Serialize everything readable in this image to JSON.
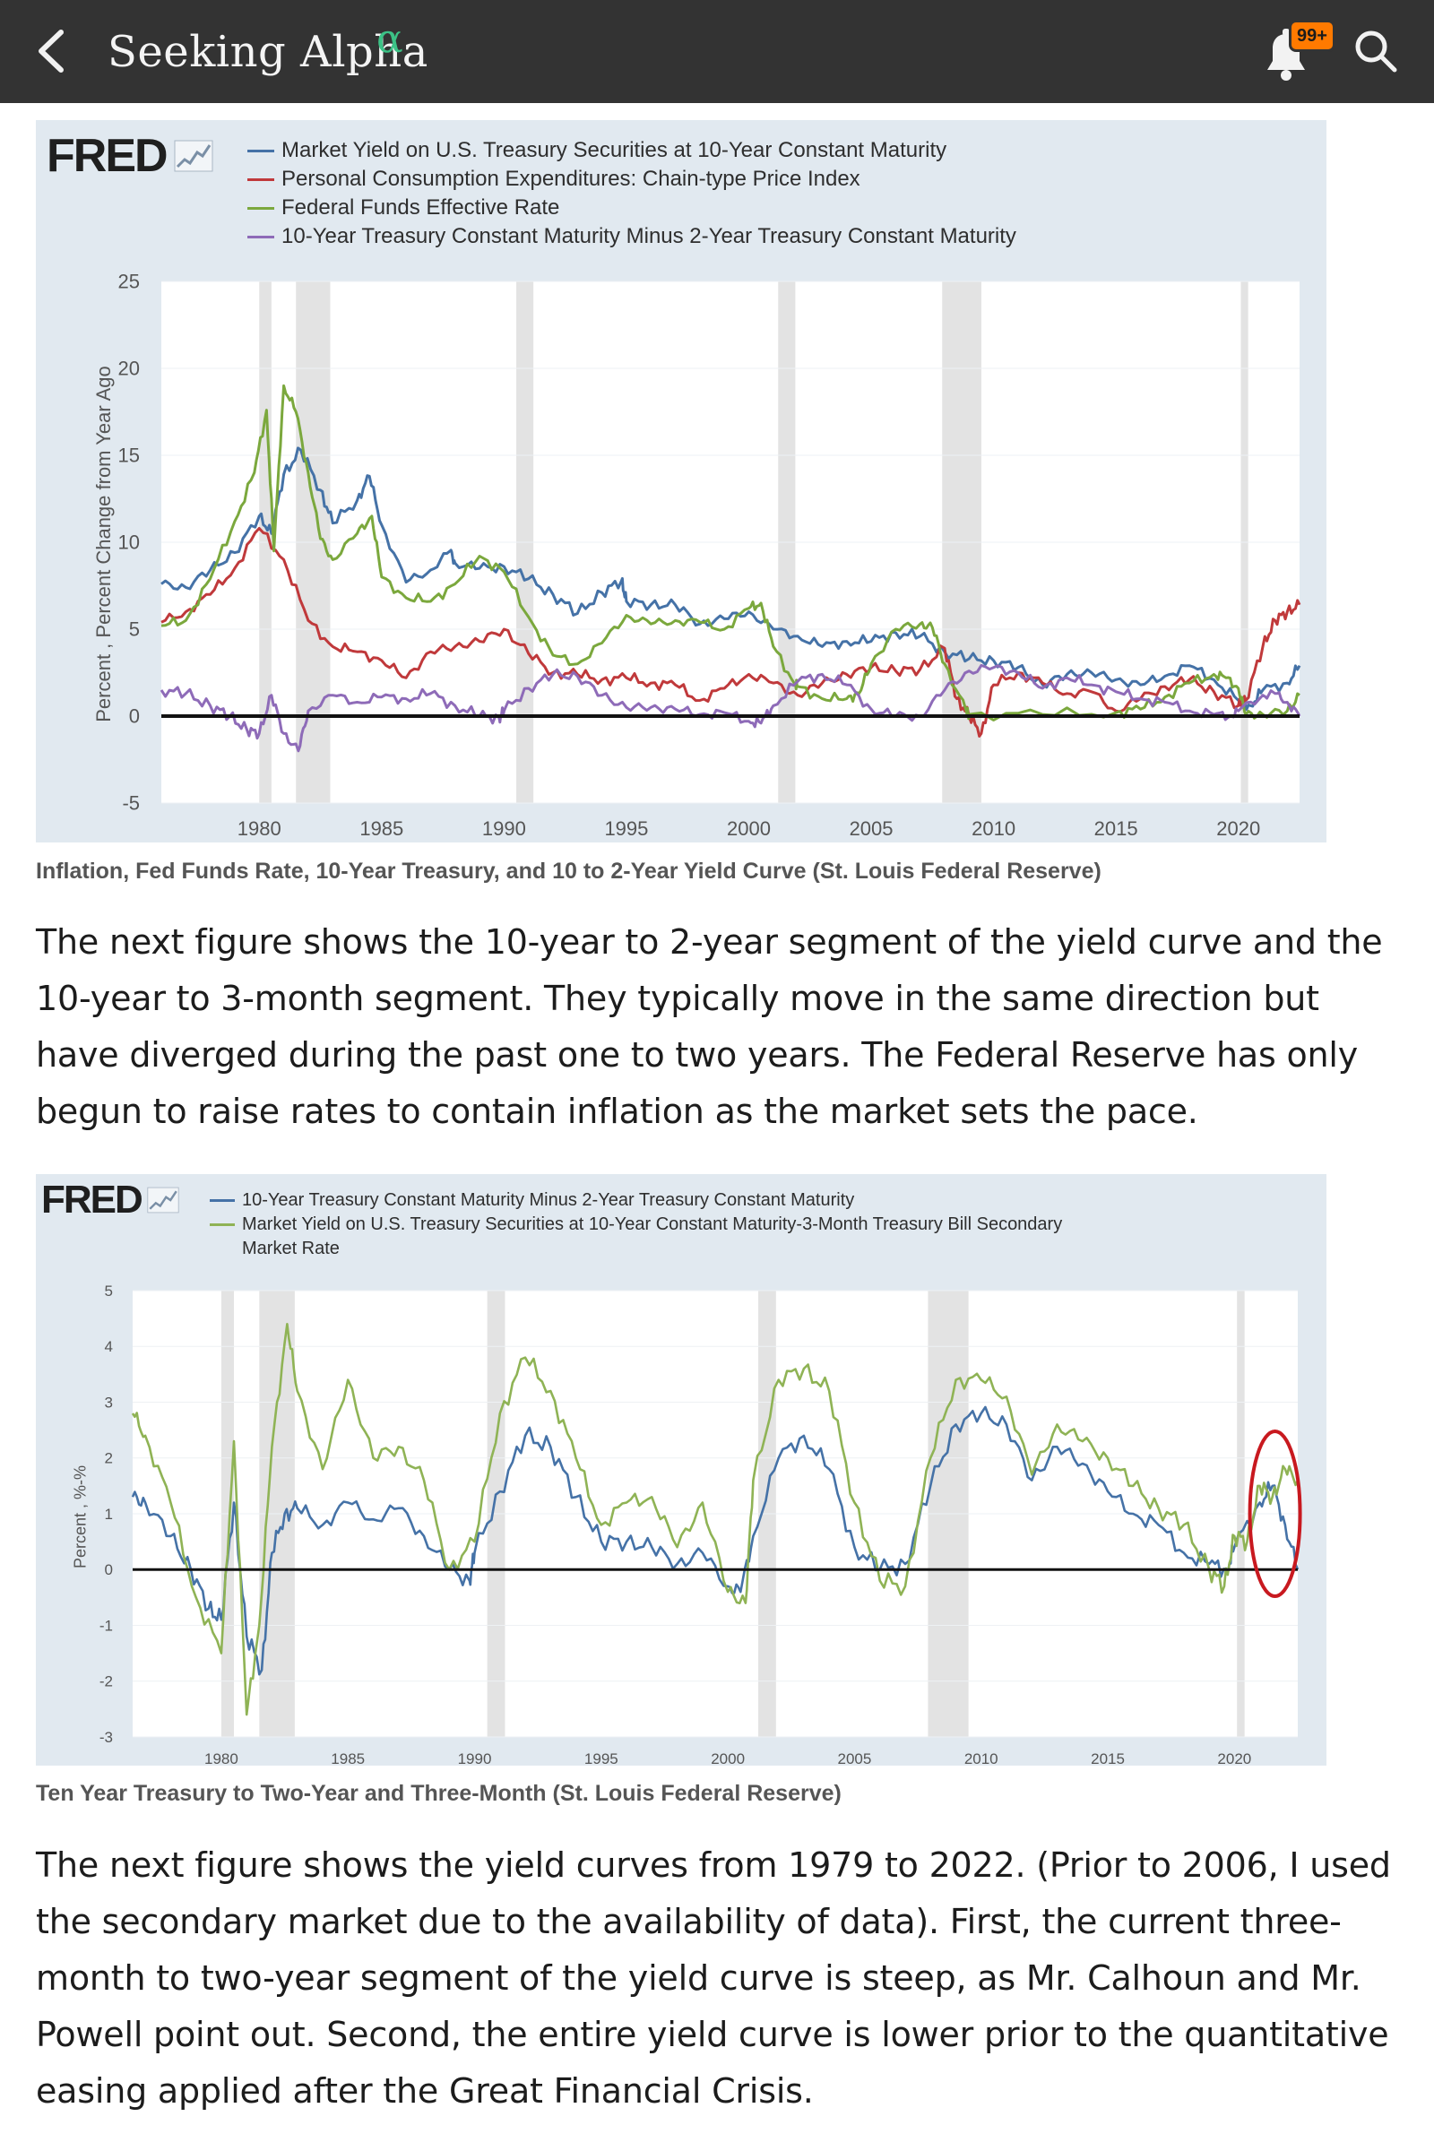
{
  "app": {
    "brand": "Seeking Alpha",
    "brand_mark": "α",
    "notifications_badge": "99+",
    "icons": [
      "back-chevron-icon",
      "bell-icon",
      "search-icon"
    ],
    "colors": {
      "appbar": "#333333",
      "alpha": "#3cc286",
      "badge": "#ff7a00"
    }
  },
  "figure1": {
    "logo": "FRED",
    "caption": "Inflation, Fed Funds Rate, 10-Year Treasury, and 10 to 2-Year Yield Curve (St. Louis Federal Reserve)",
    "chart_data": {
      "type": "line",
      "ylabel": "Percent , Percent Change from Year Ago",
      "ylim": [
        -5,
        25
      ],
      "yticks": [
        "25",
        "20",
        "15",
        "10",
        "5",
        "0",
        "-5"
      ],
      "xlim": [
        1976,
        2022.5
      ],
      "xticks": [
        "1980",
        "1985",
        "1990",
        "1995",
        "2000",
        "2005",
        "2010",
        "2015",
        "2020"
      ],
      "recessions": [
        [
          1980.0,
          1980.5
        ],
        [
          1981.5,
          1982.9
        ],
        [
          1990.5,
          1991.2
        ],
        [
          2001.2,
          2001.9
        ],
        [
          2007.9,
          2009.5
        ],
        [
          2020.1,
          2020.4
        ]
      ],
      "zero_line": 0,
      "legend_position": "top",
      "series": [
        {
          "name": "Market Yield on U.S. Treasury Securities at 10-Year Constant Maturity",
          "color": "#4572a7",
          "x": [
            1976,
            1977,
            1978,
            1979,
            1980,
            1980.5,
            1981,
            1981.7,
            1982.5,
            1983,
            1984,
            1984.5,
            1985,
            1986,
            1987,
            1987.8,
            1988,
            1989,
            1990,
            1991,
            1992,
            1993,
            1994,
            1994.8,
            1995,
            1996,
            1997,
            1998,
            1999,
            2000,
            2001,
            2002,
            2003,
            2004,
            2005,
            2006,
            2007,
            2008,
            2009,
            2010,
            2011,
            2012,
            2013,
            2014,
            2015,
            2016,
            2017,
            2018,
            2019,
            2020,
            2020.5,
            2021,
            2022,
            2022.5
          ],
          "y": [
            7.6,
            7.4,
            8.4,
            9.4,
            11.5,
            10.5,
            13.9,
            15.3,
            13.0,
            11.1,
            12.4,
            13.8,
            11.0,
            7.7,
            8.4,
            9.5,
            8.8,
            8.5,
            8.6,
            7.9,
            7.0,
            5.9,
            7.1,
            7.8,
            6.6,
            6.4,
            6.4,
            5.3,
            5.6,
            6.0,
            5.0,
            4.6,
            4.0,
            4.3,
            4.3,
            4.8,
            4.6,
            3.7,
            3.3,
            3.2,
            2.8,
            1.8,
            2.4,
            2.5,
            2.1,
            1.8,
            2.3,
            2.9,
            2.1,
            0.9,
            0.6,
            1.5,
            1.9,
            2.9
          ]
        },
        {
          "name": "Personal Consumption Expenditures: Chain-type Price Index",
          "color": "#c0393b",
          "x": [
            1976,
            1977,
            1978,
            1979,
            1980,
            1981,
            1982,
            1983,
            1984,
            1985,
            1986,
            1987,
            1988,
            1989,
            1990,
            1991,
            1992,
            1993,
            1994,
            1995,
            1996,
            1997,
            1998,
            1999,
            2000,
            2001,
            2002,
            2003,
            2004,
            2005,
            2006,
            2007,
            2008,
            2008.5,
            2009,
            2009.5,
            2010,
            2011,
            2012,
            2013,
            2014,
            2015,
            2016,
            2017,
            2018,
            2019,
            2020,
            2020.3,
            2021,
            2021.5,
            2022,
            2022.5
          ],
          "y": [
            5.4,
            6.0,
            7.0,
            8.5,
            10.8,
            9.0,
            5.5,
            4.0,
            3.7,
            3.2,
            2.2,
            3.7,
            4.0,
            4.3,
            5.0,
            3.6,
            2.5,
            2.4,
            2.1,
            2.2,
            1.9,
            1.8,
            0.9,
            1.6,
            2.4,
            1.9,
            1.2,
            1.9,
            2.4,
            2.8,
            2.6,
            2.7,
            3.9,
            1.0,
            0.0,
            -1.0,
            1.8,
            2.5,
            1.9,
            1.3,
            1.4,
            0.3,
            1.0,
            1.7,
            2.1,
            1.4,
            0.6,
            0.9,
            4.0,
            5.5,
            6.0,
            6.4
          ]
        },
        {
          "name": "Federal Funds Effective Rate",
          "color": "#7ba83d",
          "x": [
            1976,
            1977,
            1978,
            1979,
            1979.8,
            1980.3,
            1980.6,
            1981,
            1981.5,
            1982,
            1982.5,
            1983,
            1984,
            1984.6,
            1985,
            1986,
            1987,
            1988,
            1989,
            1990,
            1991,
            1992,
            1993,
            1994,
            1995,
            1996,
            1997,
            1998,
            1999,
            2000,
            2000.5,
            2001,
            2001.9,
            2002,
            2003,
            2004,
            2004.5,
            2005,
            2006,
            2007,
            2007.5,
            2008,
            2008.9,
            2009,
            2012,
            2015,
            2016,
            2017,
            2018,
            2019,
            2019.5,
            2020,
            2020.3,
            2021,
            2022,
            2022.5
          ],
          "y": [
            5.2,
            5.5,
            7.9,
            11.2,
            14.0,
            17.6,
            9.5,
            19.0,
            17.5,
            14.0,
            10.2,
            9.0,
            10.5,
            11.5,
            8.0,
            6.8,
            6.6,
            7.6,
            9.2,
            8.3,
            5.7,
            3.5,
            3.0,
            4.2,
            5.8,
            5.3,
            5.5,
            5.4,
            5.0,
            6.2,
            6.5,
            4.0,
            1.8,
            1.7,
            1.0,
            1.0,
            1.3,
            3.0,
            5.0,
            5.3,
            5.1,
            3.0,
            0.2,
            0.1,
            0.1,
            0.2,
            0.4,
            1.1,
            1.9,
            2.4,
            2.2,
            1.6,
            0.1,
            0.1,
            0.3,
            1.2
          ]
        },
        {
          "name": "10-Year Treasury Constant Maturity Minus 2-Year Treasury Constant Maturity",
          "color": "#8e6bb8",
          "x": [
            1976,
            1977,
            1978,
            1978.8,
            1979.5,
            1980,
            1980.5,
            1981,
            1981.6,
            1982,
            1983,
            1984,
            1985,
            1986,
            1987,
            1988,
            1989,
            1989.8,
            1990,
            1991,
            1992,
            1993,
            1994,
            1995,
            1996,
            1997,
            1998,
            1999,
            2000,
            2000.5,
            2001,
            2002,
            2003,
            2004,
            2005,
            2006,
            2007,
            2008,
            2009,
            2010,
            2011,
            2012,
            2013,
            2014,
            2015,
            2016,
            2017,
            2018,
            2019,
            2019.7,
            2020,
            2021,
            2021.5,
            2022,
            2022.5
          ],
          "y": [
            1.5,
            1.3,
            0.6,
            0.0,
            -0.8,
            -1.0,
            1.2,
            -1.0,
            -2.0,
            0.3,
            1.2,
            0.8,
            1.1,
            1.0,
            1.3,
            0.6,
            0.0,
            -0.1,
            0.3,
            1.6,
            2.4,
            2.3,
            1.2,
            0.5,
            0.5,
            0.4,
            0.1,
            0.2,
            -0.3,
            -0.4,
            0.6,
            2.0,
            2.4,
            1.8,
            0.4,
            0.0,
            0.0,
            1.5,
            2.6,
            2.8,
            2.5,
            1.6,
            2.2,
            1.8,
            1.4,
            1.0,
            0.8,
            0.3,
            0.1,
            0.0,
            0.3,
            1.2,
            1.3,
            0.8,
            0.0
          ]
        }
      ]
    }
  },
  "paragraph1": "The next figure shows the 10-year to 2-year segment of the yield curve and the 10-year to 3-month segment. They typically move in the same direction but have diverged during the past one to two years. The Federal Reserve has only begun to raise rates to contain inflation as the market sets the pace.",
  "figure2": {
    "logo": "FRED",
    "caption": "Ten Year Treasury to Two-Year and Three-Month (St. Louis Federal Reserve)",
    "chart_data": {
      "type": "line",
      "ylabel": "Percent , %-%",
      "ylim": [
        -3,
        5
      ],
      "yticks": [
        "5",
        "4",
        "3",
        "2",
        "1",
        "0",
        "-1",
        "-2",
        "-3"
      ],
      "xlim": [
        1976.5,
        2022.5
      ],
      "xticks": [
        "1980",
        "1985",
        "1990",
        "1995",
        "2000",
        "2005",
        "2010",
        "2015",
        "2020"
      ],
      "recessions": [
        [
          1980.0,
          1980.5
        ],
        [
          1981.5,
          1982.9
        ],
        [
          1990.5,
          1991.2
        ],
        [
          2001.2,
          2001.9
        ],
        [
          2007.9,
          2009.5
        ],
        [
          2020.1,
          2020.4
        ]
      ],
      "zero_line": 0,
      "annotation": "red-circle-highlight",
      "legend_position": "top",
      "series": [
        {
          "name": "10-Year Treasury Constant Maturity Minus 2-Year Treasury Constant Maturity",
          "color": "#4572a7",
          "x": [
            1976.5,
            1977,
            1978,
            1978.8,
            1979.5,
            1980,
            1980.5,
            1981,
            1981.6,
            1982,
            1982.5,
            1983,
            1984,
            1985,
            1986,
            1987,
            1988,
            1989,
            1989.8,
            1990,
            1991,
            1992,
            1993,
            1994,
            1995,
            1996,
            1997,
            1998,
            1999,
            2000,
            2000.5,
            2001,
            2002,
            2003,
            2004,
            2005,
            2006,
            2007,
            2008,
            2009,
            2010,
            2011,
            2012,
            2013,
            2014,
            2015,
            2016,
            2017,
            2018,
            2019,
            2019.7,
            2020,
            2021,
            2021.5,
            2022,
            2022.5
          ],
          "y": [
            1.3,
            1.2,
            0.6,
            0.0,
            -0.7,
            -0.9,
            1.2,
            -1.2,
            -1.8,
            0.3,
            1.0,
            1.1,
            0.8,
            1.2,
            0.9,
            1.1,
            0.6,
            0.0,
            -0.2,
            0.3,
            1.4,
            2.4,
            2.2,
            1.3,
            0.5,
            0.5,
            0.4,
            0.1,
            0.3,
            -0.3,
            -0.4,
            0.6,
            2.0,
            2.4,
            1.8,
            0.4,
            0.0,
            0.1,
            1.5,
            2.6,
            2.8,
            2.6,
            1.6,
            2.2,
            1.9,
            1.4,
            1.0,
            0.8,
            0.3,
            0.1,
            0.0,
            0.4,
            1.2,
            1.5,
            0.8,
            0.0
          ]
        },
        {
          "name": "Market Yield on U.S. Treasury Securities at 10-Year Constant Maturity-3-Month Treasury Bill Secondary Market Rate",
          "color": "#8fb355",
          "x": [
            1976.5,
            1977,
            1978,
            1979,
            1980,
            1980.5,
            1981,
            1981.5,
            1982,
            1982.6,
            1983,
            1984,
            1985,
            1986,
            1987,
            1988,
            1989,
            1990,
            1991,
            1992,
            1993,
            1994,
            1995,
            1996,
            1997,
            1998,
            1999,
            2000,
            2000.7,
            2001,
            2002,
            2003,
            2004,
            2005,
            2006,
            2007,
            2008,
            2009,
            2010,
            2011,
            2012,
            2013,
            2014,
            2015,
            2016,
            2017,
            2018,
            2019,
            2019.6,
            2020,
            2020.5,
            2021,
            2021.5,
            2022,
            2022.5
          ],
          "y": [
            2.8,
            2.4,
            1.2,
            -0.5,
            -1.5,
            2.3,
            -2.6,
            -1.0,
            2.2,
            4.4,
            3.2,
            1.8,
            3.4,
            2.0,
            2.2,
            1.6,
            0.0,
            0.5,
            2.8,
            3.8,
            3.2,
            2.0,
            0.8,
            1.2,
            1.3,
            0.4,
            1.2,
            -0.4,
            -0.6,
            1.6,
            3.4,
            3.6,
            3.2,
            1.2,
            -0.2,
            -0.3,
            2.0,
            3.4,
            3.4,
            3.1,
            1.7,
            2.6,
            2.3,
            2.0,
            1.5,
            1.1,
            0.8,
            0.0,
            -0.3,
            0.6,
            0.5,
            1.5,
            1.3,
            1.8,
            1.6
          ]
        }
      ]
    }
  },
  "paragraph2": "The next figure shows the yield curves from 1979 to 2022. (Prior to 2006, I used the secondary market due to the availability of data). First, the current three-month to two-year segment of the yield curve is steep, as Mr. Calhoun and Mr. Powell point out. Second, the entire yield curve is lower prior to the quantitative easing applied after the Great Financial Crisis."
}
